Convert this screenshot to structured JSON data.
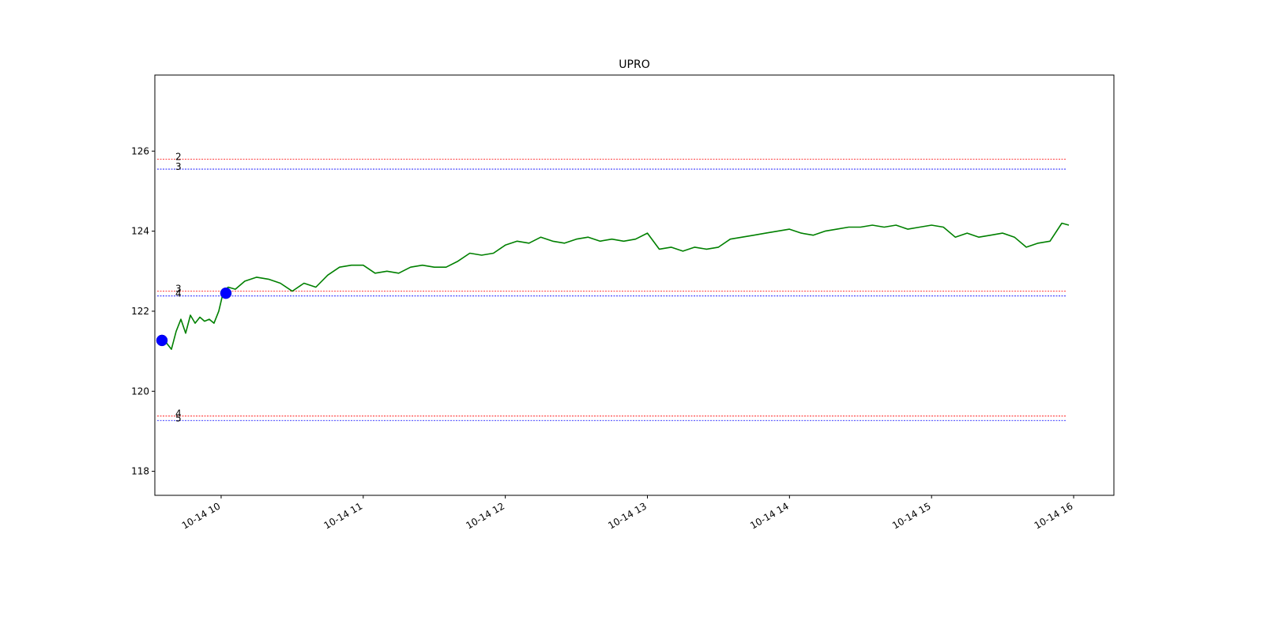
{
  "chart_data": {
    "type": "line",
    "title": "UPRO",
    "xlabel": "",
    "ylabel": "",
    "grid": false,
    "x_range": [
      "10-14 09:32",
      "10-14 16:17"
    ],
    "ylim": [
      117.4,
      127.9
    ],
    "x_ticks": [
      {
        "value": "10-14 10:00",
        "label": "10-14 10"
      },
      {
        "value": "10-14 11:00",
        "label": "10-14 11"
      },
      {
        "value": "10-14 12:00",
        "label": "10-14 12"
      },
      {
        "value": "10-14 13:00",
        "label": "10-14 13"
      },
      {
        "value": "10-14 14:00",
        "label": "10-14 14"
      },
      {
        "value": "10-14 15:00",
        "label": "10-14 15"
      },
      {
        "value": "10-14 16:00",
        "label": "10-14 16"
      }
    ],
    "y_ticks": [
      118,
      120,
      122,
      124,
      126
    ],
    "series": [
      {
        "color": "#008000",
        "x": [
          "10-14 09:35",
          "10-14 09:37",
          "10-14 09:39",
          "10-14 09:41",
          "10-14 09:43",
          "10-14 09:45",
          "10-14 09:47",
          "10-14 09:49",
          "10-14 09:51",
          "10-14 09:53",
          "10-14 09:55",
          "10-14 09:57",
          "10-14 09:59",
          "10-14 10:01",
          "10-14 10:03",
          "10-14 10:06",
          "10-14 10:10",
          "10-14 10:15",
          "10-14 10:20",
          "10-14 10:25",
          "10-14 10:30",
          "10-14 10:35",
          "10-14 10:40",
          "10-14 10:45",
          "10-14 10:50",
          "10-14 10:55",
          "10-14 11:00",
          "10-14 11:05",
          "10-14 11:10",
          "10-14 11:15",
          "10-14 11:20",
          "10-14 11:25",
          "10-14 11:30",
          "10-14 11:35",
          "10-14 11:40",
          "10-14 11:45",
          "10-14 11:50",
          "10-14 11:55",
          "10-14 12:00",
          "10-14 12:05",
          "10-14 12:10",
          "10-14 12:15",
          "10-14 12:20",
          "10-14 12:25",
          "10-14 12:30",
          "10-14 12:35",
          "10-14 12:40",
          "10-14 12:45",
          "10-14 12:50",
          "10-14 12:55",
          "10-14 13:00",
          "10-14 13:05",
          "10-14 13:10",
          "10-14 13:15",
          "10-14 13:20",
          "10-14 13:25",
          "10-14 13:30",
          "10-14 13:35",
          "10-14 13:40",
          "10-14 13:45",
          "10-14 13:50",
          "10-14 13:55",
          "10-14 14:00",
          "10-14 14:05",
          "10-14 14:10",
          "10-14 14:15",
          "10-14 14:20",
          "10-14 14:25",
          "10-14 14:30",
          "10-14 14:35",
          "10-14 14:40",
          "10-14 14:45",
          "10-14 14:50",
          "10-14 14:55",
          "10-14 15:00",
          "10-14 15:05",
          "10-14 15:10",
          "10-14 15:15",
          "10-14 15:20",
          "10-14 15:25",
          "10-14 15:30",
          "10-14 15:35",
          "10-14 15:40",
          "10-14 15:45",
          "10-14 15:50",
          "10-14 15:55",
          "10-14 15:58"
        ],
        "values": [
          121.3,
          121.2,
          121.05,
          121.5,
          121.8,
          121.45,
          121.9,
          121.7,
          121.85,
          121.75,
          121.8,
          121.7,
          122.0,
          122.5,
          122.6,
          122.55,
          122.75,
          122.85,
          122.8,
          122.7,
          122.5,
          122.7,
          122.6,
          122.9,
          123.1,
          123.15,
          123.15,
          122.95,
          123.0,
          122.95,
          123.1,
          123.15,
          123.1,
          123.1,
          123.25,
          123.45,
          123.4,
          123.45,
          123.65,
          123.75,
          123.7,
          123.85,
          123.75,
          123.7,
          123.8,
          123.85,
          123.75,
          123.8,
          123.75,
          123.8,
          123.95,
          123.55,
          123.6,
          123.5,
          123.6,
          123.55,
          123.6,
          123.8,
          123.85,
          123.9,
          123.95,
          124.0,
          124.05,
          123.95,
          123.9,
          124.0,
          124.05,
          124.1,
          124.1,
          124.15,
          124.1,
          124.15,
          124.05,
          124.1,
          124.15,
          124.1,
          123.85,
          123.95,
          123.85,
          123.9,
          123.95,
          123.85,
          123.6,
          123.7,
          123.75,
          124.2,
          124.15
        ]
      }
    ],
    "markers": [
      {
        "x": "10-14 09:35",
        "value": 121.27,
        "color": "#0000ff"
      },
      {
        "x": "10-14 10:02",
        "value": 122.45,
        "color": "#0000ff"
      }
    ],
    "levels": [
      {
        "label": "2",
        "value": 125.8,
        "color": "#ff0000"
      },
      {
        "label": "3",
        "value": 125.55,
        "color": "#0000ff"
      },
      {
        "label": "3",
        "value": 122.5,
        "color": "#ff0000"
      },
      {
        "label": "4",
        "value": 122.38,
        "color": "#0000ff"
      },
      {
        "label": "4",
        "value": 119.38,
        "color": "#ff0000"
      },
      {
        "label": "5",
        "value": 119.27,
        "color": "#0000ff"
      }
    ],
    "level_span": [
      "10-14 09:33",
      "10-14 15:57"
    ]
  }
}
